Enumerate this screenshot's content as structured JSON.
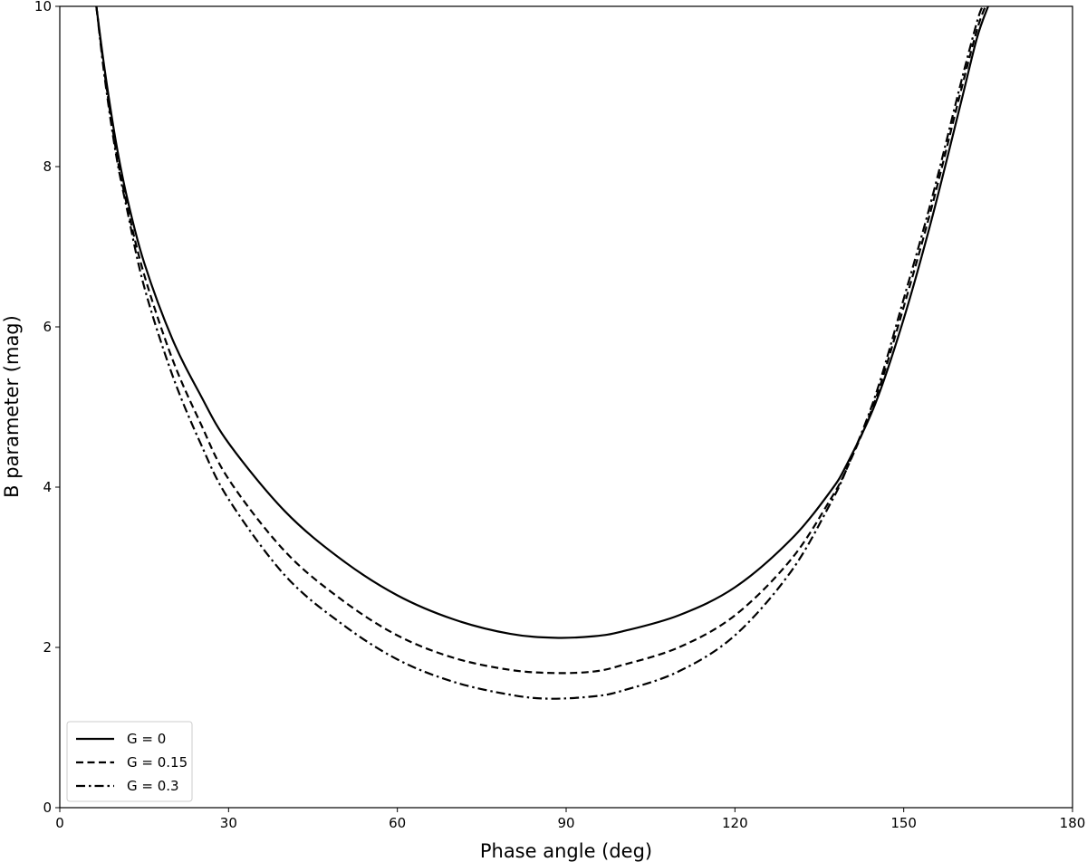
{
  "chart_data": {
    "type": "line",
    "title": "",
    "xlabel": "Phase angle (deg)",
    "ylabel": "B parameter (mag)",
    "xlim": [
      0,
      180
    ],
    "ylim": [
      0,
      10
    ],
    "x_ticks": [
      0,
      30,
      60,
      90,
      120,
      150,
      180
    ],
    "y_ticks": [
      0,
      2,
      4,
      6,
      8,
      10
    ],
    "x_tick_labels": [
      "0",
      "30",
      "60",
      "90",
      "120",
      "150",
      "180"
    ],
    "y_tick_labels": [
      "0",
      "2",
      "4",
      "6",
      "8",
      "10"
    ],
    "grid": false,
    "legend_position": "lower-left",
    "series": [
      {
        "name": "G = 0",
        "line_style": "solid",
        "color": "#000000",
        "x": [
          6.5,
          8,
          10,
          12,
          15,
          20,
          25,
          30,
          40,
          50,
          60,
          70,
          80,
          88,
          95,
          100,
          110,
          120,
          130,
          137,
          140,
          145,
          150,
          155,
          160,
          163,
          165
        ],
        "y": [
          10.0,
          9.2,
          8.3,
          7.6,
          6.8,
          5.85,
          5.15,
          4.55,
          3.7,
          3.1,
          2.65,
          2.35,
          2.17,
          2.12,
          2.14,
          2.2,
          2.4,
          2.75,
          3.35,
          3.95,
          4.3,
          5.05,
          6.1,
          7.35,
          8.75,
          9.6,
          10.0
        ]
      },
      {
        "name": "G = 0.15",
        "line_style": "dashed",
        "color": "#000000",
        "x": [
          6.5,
          8,
          10,
          12,
          15,
          20,
          25,
          30,
          40,
          50,
          60,
          70,
          80,
          88,
          95,
          100,
          110,
          120,
          130,
          137,
          140,
          145,
          150,
          155,
          160,
          163,
          164.5
        ],
        "y": [
          10.0,
          9.15,
          8.2,
          7.5,
          6.65,
          5.6,
          4.8,
          4.1,
          3.2,
          2.6,
          2.15,
          1.87,
          1.72,
          1.68,
          1.7,
          1.78,
          2.0,
          2.4,
          3.1,
          3.85,
          4.25,
          5.1,
          6.25,
          7.5,
          8.9,
          9.7,
          10.0
        ]
      },
      {
        "name": "G = 0.3",
        "line_style": "dashdot",
        "color": "#000000",
        "x": [
          6.5,
          8,
          10,
          12,
          15,
          20,
          25,
          30,
          40,
          50,
          60,
          70,
          80,
          87,
          95,
          100,
          110,
          120,
          130,
          137,
          140,
          145,
          150,
          155,
          160,
          163,
          164
        ],
        "y": [
          10.0,
          9.1,
          8.15,
          7.45,
          6.5,
          5.4,
          4.55,
          3.85,
          2.9,
          2.3,
          1.85,
          1.57,
          1.41,
          1.36,
          1.39,
          1.46,
          1.7,
          2.15,
          2.95,
          3.8,
          4.25,
          5.15,
          6.35,
          7.6,
          9.0,
          9.8,
          10.0
        ]
      }
    ]
  }
}
